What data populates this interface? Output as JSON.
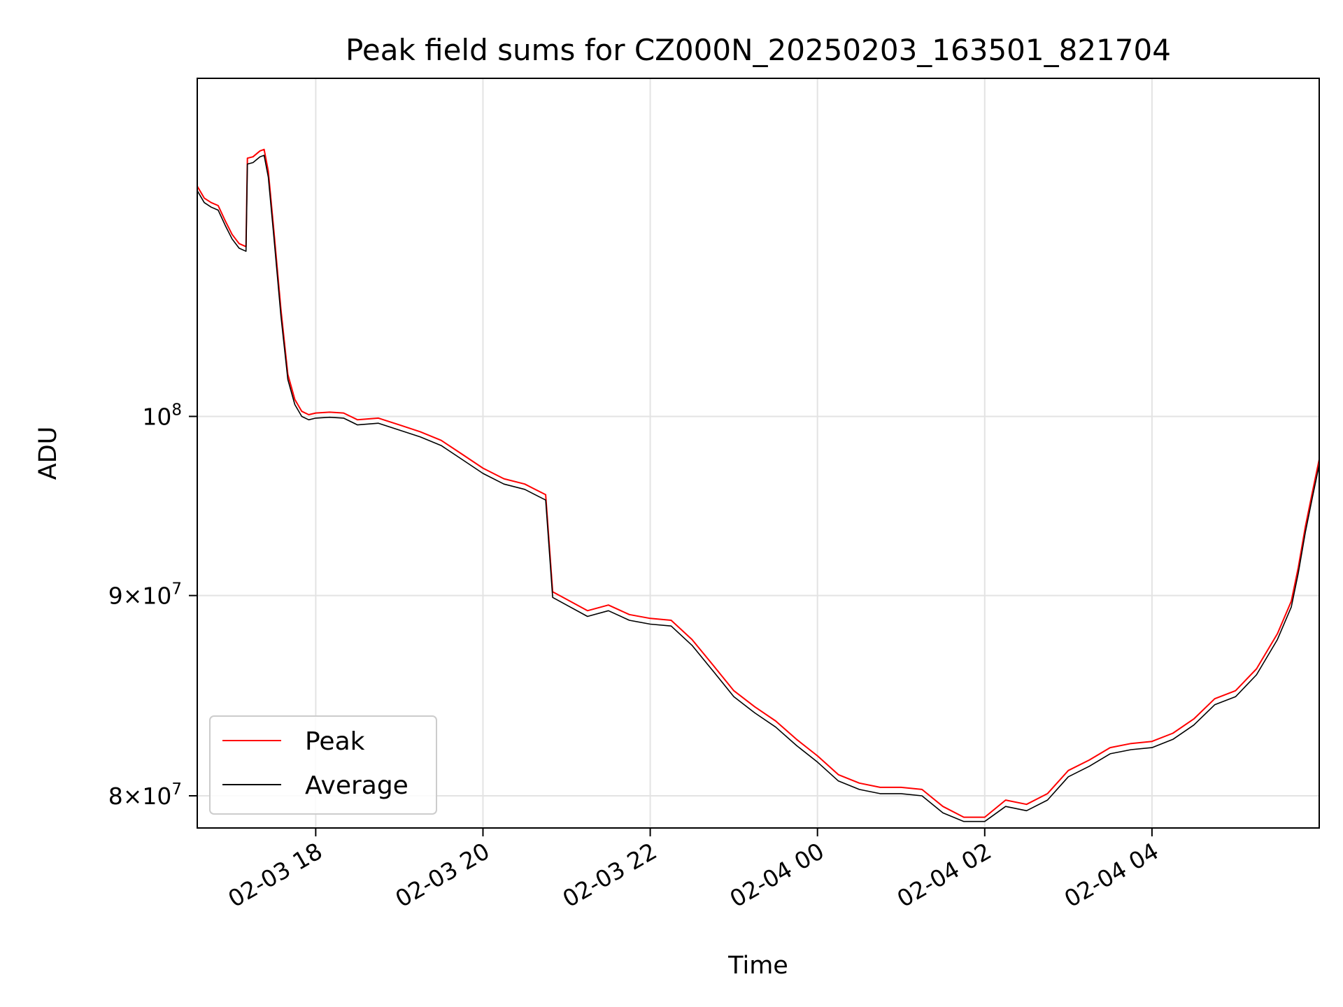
{
  "chart_data": {
    "type": "line",
    "title": "Peak field sums for CZ000N_20250203_163501_821704",
    "xlabel": "Time",
    "ylabel": "ADU",
    "yscale": "log",
    "xlim": [
      "2025-02-03 16:35",
      "2025-02-04 06:00"
    ],
    "ylim": [
      78500000,
      122000000
    ],
    "grid": true,
    "legend_position": "lower-left",
    "x_ticks": [
      {
        "value": "2025-02-03 18:00",
        "label": "02-03 18"
      },
      {
        "value": "2025-02-03 20:00",
        "label": "02-03 20"
      },
      {
        "value": "2025-02-03 22:00",
        "label": "02-03 22"
      },
      {
        "value": "2025-02-04 00:00",
        "label": "02-04 00"
      },
      {
        "value": "2025-02-04 02:00",
        "label": "02-04 02"
      },
      {
        "value": "2025-02-04 04:00",
        "label": "02-04 04"
      }
    ],
    "y_ticks": [
      {
        "value": 100000000,
        "label": "10",
        "exponent": "8",
        "mantissa": ""
      },
      {
        "value": 90000000,
        "label": "9×10",
        "exponent": "7",
        "mantissa": "9×"
      },
      {
        "value": 80000000,
        "label": "8×10",
        "exponent": "7",
        "mantissa": "8×"
      }
    ],
    "series": [
      {
        "name": "Peak",
        "color": "#ff0000",
        "points": [
          [
            "2025-02-03 16:35",
            114500000
          ],
          [
            "2025-02-03 16:40",
            113700000
          ],
          [
            "2025-02-03 16:45",
            113400000
          ],
          [
            "2025-02-03 16:50",
            113200000
          ],
          [
            "2025-02-03 16:55",
            112200000
          ],
          [
            "2025-02-03 17:00",
            111300000
          ],
          [
            "2025-02-03 17:05",
            110700000
          ],
          [
            "2025-02-03 17:10",
            110500000
          ],
          [
            "2025-02-03 17:11",
            116400000
          ],
          [
            "2025-02-03 17:15",
            116500000
          ],
          [
            "2025-02-03 17:20",
            116900000
          ],
          [
            "2025-02-03 17:23",
            117000000
          ],
          [
            "2025-02-03 17:26",
            115500000
          ],
          [
            "2025-02-03 17:30",
            111500000
          ],
          [
            "2025-02-03 17:35",
            106500000
          ],
          [
            "2025-02-03 17:40",
            102500000
          ],
          [
            "2025-02-03 17:45",
            101000000
          ],
          [
            "2025-02-03 17:50",
            100300000
          ],
          [
            "2025-02-03 17:55",
            100100000
          ],
          [
            "2025-02-03 18:00",
            100200000
          ],
          [
            "2025-02-03 18:10",
            100250000
          ],
          [
            "2025-02-03 18:20",
            100200000
          ],
          [
            "2025-02-03 18:30",
            99800000
          ],
          [
            "2025-02-03 18:45",
            99900000
          ],
          [
            "2025-02-03 19:00",
            99500000
          ],
          [
            "2025-02-03 19:15",
            99100000
          ],
          [
            "2025-02-03 19:30",
            98600000
          ],
          [
            "2025-02-03 19:45",
            97800000
          ],
          [
            "2025-02-03 20:00",
            97000000
          ],
          [
            "2025-02-03 20:15",
            96400000
          ],
          [
            "2025-02-03 20:30",
            96100000
          ],
          [
            "2025-02-03 20:45",
            95500000
          ],
          [
            "2025-02-03 20:50",
            90200000
          ],
          [
            "2025-02-03 21:00",
            89800000
          ],
          [
            "2025-02-03 21:15",
            89200000
          ],
          [
            "2025-02-03 21:30",
            89500000
          ],
          [
            "2025-02-03 21:45",
            89000000
          ],
          [
            "2025-02-03 22:00",
            88800000
          ],
          [
            "2025-02-03 22:15",
            88700000
          ],
          [
            "2025-02-03 22:30",
            87700000
          ],
          [
            "2025-02-03 22:45",
            86400000
          ],
          [
            "2025-02-03 23:00",
            85100000
          ],
          [
            "2025-02-03 23:15",
            84300000
          ],
          [
            "2025-02-03 23:30",
            83600000
          ],
          [
            "2025-02-03 23:45",
            82700000
          ],
          [
            "2025-02-04 00:00",
            81900000
          ],
          [
            "2025-02-04 00:15",
            81000000
          ],
          [
            "2025-02-04 00:30",
            80600000
          ],
          [
            "2025-02-04 00:45",
            80400000
          ],
          [
            "2025-02-04 01:00",
            80400000
          ],
          [
            "2025-02-04 01:15",
            80300000
          ],
          [
            "2025-02-04 01:30",
            79500000
          ],
          [
            "2025-02-04 01:45",
            79000000
          ],
          [
            "2025-02-04 02:00",
            79000000
          ],
          [
            "2025-02-04 02:15",
            79800000
          ],
          [
            "2025-02-04 02:30",
            79600000
          ],
          [
            "2025-02-04 02:45",
            80100000
          ],
          [
            "2025-02-04 03:00",
            81200000
          ],
          [
            "2025-02-04 03:15",
            81700000
          ],
          [
            "2025-02-04 03:30",
            82300000
          ],
          [
            "2025-02-04 03:45",
            82500000
          ],
          [
            "2025-02-04 04:00",
            82600000
          ],
          [
            "2025-02-04 04:15",
            83000000
          ],
          [
            "2025-02-04 04:30",
            83700000
          ],
          [
            "2025-02-04 04:45",
            84700000
          ],
          [
            "2025-02-04 05:00",
            85100000
          ],
          [
            "2025-02-04 05:15",
            86200000
          ],
          [
            "2025-02-04 05:30",
            88000000
          ],
          [
            "2025-02-04 05:40",
            89700000
          ],
          [
            "2025-02-04 05:45",
            91500000
          ],
          [
            "2025-02-04 05:50",
            93700000
          ],
          [
            "2025-02-04 05:55",
            95600000
          ],
          [
            "2025-02-04 06:00",
            97500000
          ]
        ]
      },
      {
        "name": "Average",
        "color": "#000000",
        "points": [
          [
            "2025-02-03 16:35",
            114200000
          ],
          [
            "2025-02-03 16:40",
            113400000
          ],
          [
            "2025-02-03 16:45",
            113100000
          ],
          [
            "2025-02-03 16:50",
            112900000
          ],
          [
            "2025-02-03 16:55",
            111900000
          ],
          [
            "2025-02-03 17:00",
            111000000
          ],
          [
            "2025-02-03 17:05",
            110400000
          ],
          [
            "2025-02-03 17:10",
            110200000
          ],
          [
            "2025-02-03 17:11",
            116000000
          ],
          [
            "2025-02-03 17:15",
            116100000
          ],
          [
            "2025-02-03 17:20",
            116500000
          ],
          [
            "2025-02-03 17:23",
            116600000
          ],
          [
            "2025-02-03 17:26",
            115100000
          ],
          [
            "2025-02-03 17:30",
            111100000
          ],
          [
            "2025-02-03 17:35",
            106100000
          ],
          [
            "2025-02-03 17:40",
            102200000
          ],
          [
            "2025-02-03 17:45",
            100700000
          ],
          [
            "2025-02-03 17:50",
            100000000
          ],
          [
            "2025-02-03 17:55",
            99800000
          ],
          [
            "2025-02-03 18:00",
            99900000
          ],
          [
            "2025-02-03 18:10",
            99950000
          ],
          [
            "2025-02-03 18:20",
            99900000
          ],
          [
            "2025-02-03 18:30",
            99500000
          ],
          [
            "2025-02-03 18:45",
            99600000
          ],
          [
            "2025-02-03 19:00",
            99200000
          ],
          [
            "2025-02-03 19:15",
            98800000
          ],
          [
            "2025-02-03 19:30",
            98300000
          ],
          [
            "2025-02-03 19:45",
            97500000
          ],
          [
            "2025-02-03 20:00",
            96700000
          ],
          [
            "2025-02-03 20:15",
            96100000
          ],
          [
            "2025-02-03 20:30",
            95800000
          ],
          [
            "2025-02-03 20:45",
            95200000
          ],
          [
            "2025-02-03 20:50",
            89900000
          ],
          [
            "2025-02-03 21:00",
            89500000
          ],
          [
            "2025-02-03 21:15",
            88900000
          ],
          [
            "2025-02-03 21:30",
            89200000
          ],
          [
            "2025-02-03 21:45",
            88700000
          ],
          [
            "2025-02-03 22:00",
            88500000
          ],
          [
            "2025-02-03 22:15",
            88400000
          ],
          [
            "2025-02-03 22:30",
            87400000
          ],
          [
            "2025-02-03 22:45",
            86100000
          ],
          [
            "2025-02-03 23:00",
            84800000
          ],
          [
            "2025-02-03 23:15",
            84000000
          ],
          [
            "2025-02-03 23:30",
            83300000
          ],
          [
            "2025-02-03 23:45",
            82400000
          ],
          [
            "2025-02-04 00:00",
            81600000
          ],
          [
            "2025-02-04 00:15",
            80700000
          ],
          [
            "2025-02-04 00:30",
            80300000
          ],
          [
            "2025-02-04 00:45",
            80100000
          ],
          [
            "2025-02-04 01:00",
            80100000
          ],
          [
            "2025-02-04 01:15",
            80000000
          ],
          [
            "2025-02-04 01:30",
            79200000
          ],
          [
            "2025-02-04 01:45",
            78800000
          ],
          [
            "2025-02-04 02:00",
            78800000
          ],
          [
            "2025-02-04 02:15",
            79500000
          ],
          [
            "2025-02-04 02:30",
            79300000
          ],
          [
            "2025-02-04 02:45",
            79800000
          ],
          [
            "2025-02-04 03:00",
            80900000
          ],
          [
            "2025-02-04 03:15",
            81400000
          ],
          [
            "2025-02-04 03:30",
            82000000
          ],
          [
            "2025-02-04 03:45",
            82200000
          ],
          [
            "2025-02-04 04:00",
            82300000
          ],
          [
            "2025-02-04 04:15",
            82700000
          ],
          [
            "2025-02-04 04:30",
            83400000
          ],
          [
            "2025-02-04 04:45",
            84400000
          ],
          [
            "2025-02-04 05:00",
            84800000
          ],
          [
            "2025-02-04 05:15",
            85900000
          ],
          [
            "2025-02-04 05:30",
            87700000
          ],
          [
            "2025-02-04 05:40",
            89400000
          ],
          [
            "2025-02-04 05:45",
            91200000
          ],
          [
            "2025-02-04 05:50",
            93400000
          ],
          [
            "2025-02-04 05:55",
            95300000
          ],
          [
            "2025-02-04 06:00",
            97200000
          ]
        ]
      }
    ]
  }
}
